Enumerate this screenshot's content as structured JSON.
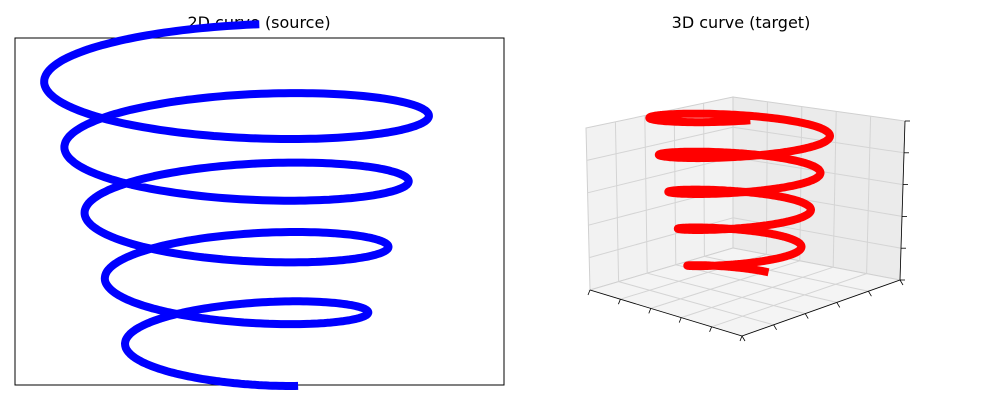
{
  "chart_data": [
    {
      "type": "line",
      "title": "2D curve (source)",
      "series": [
        {
          "color": "#0000ff",
          "turns": 4.6,
          "radius_start": 8.5,
          "radius_end": 4.6,
          "phase_start_deg": 85,
          "height_start": 10,
          "height_end": 0
        }
      ],
      "xlim": [
        -9.5,
        11
      ],
      "ylim": [
        -0.6,
        10.9
      ],
      "grid": false,
      "ticks": false
    },
    {
      "type": "line",
      "projection": "3d",
      "title": "3D curve (target)",
      "series": [
        {
          "color": "#ff0000",
          "turns": 4.6,
          "radius_start": 8.5,
          "radius_end": 4.6,
          "phase_start_deg": 85,
          "height_start": 10,
          "height_end": 0
        }
      ],
      "grid": true,
      "tick_labels": false
    }
  ]
}
